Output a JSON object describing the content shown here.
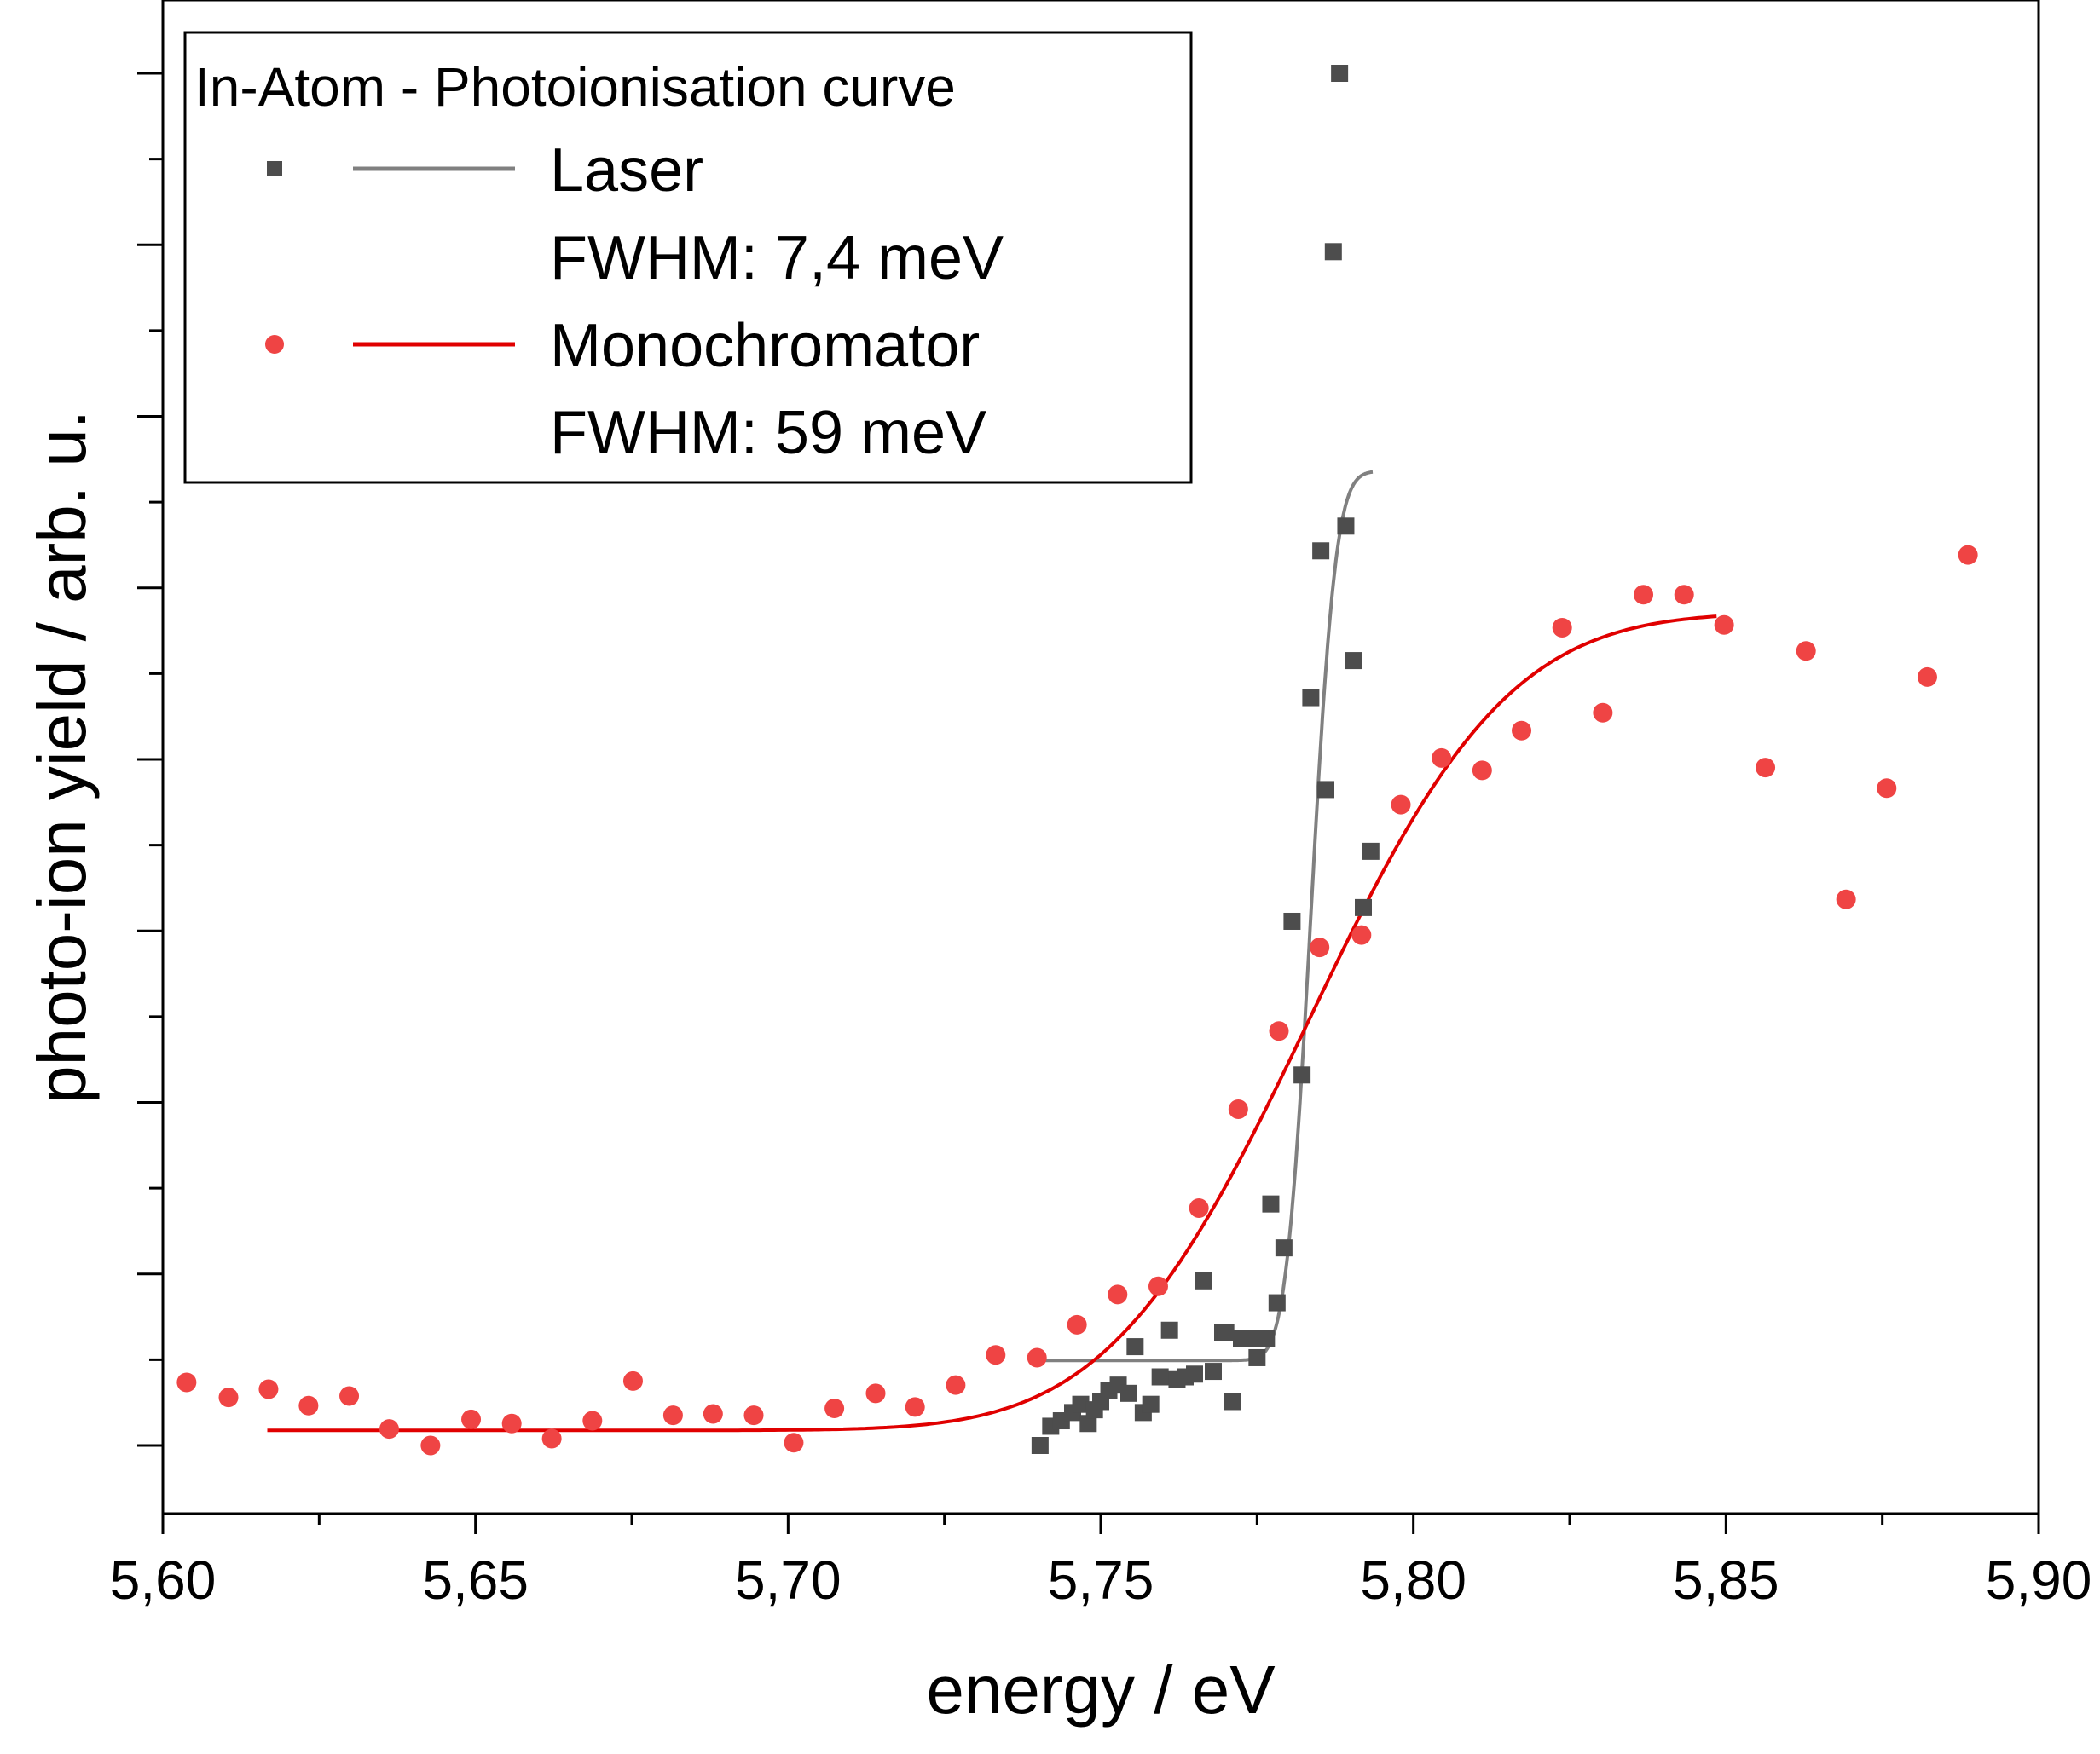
{
  "chart_data": {
    "type": "scatter",
    "title": "",
    "xlabel": "energy / eV",
    "ylabel": "photo-ion yield / arb. u.",
    "xlim": [
      5.6,
      5.9
    ],
    "ylim": [
      0,
      1
    ],
    "x_ticks": [
      5.6,
      5.65,
      5.7,
      5.75,
      5.8,
      5.85,
      5.9
    ],
    "x_tick_labels": [
      "5,60",
      "5,65",
      "5,70",
      "5,75",
      "5,80",
      "5,85",
      "5,90"
    ],
    "y_tick_labels_shown": false,
    "grid": false,
    "legend": {
      "placement": "top-left",
      "title": "In-Atom - Photoionisation curve",
      "entries": [
        {
          "series": "Laser",
          "label": "Laser",
          "sub": "FWHM: 7,4 meV"
        },
        {
          "series": "Monochromator",
          "label": "Monochromator",
          "sub": "FWHM: 59 meV"
        }
      ]
    },
    "series": [
      {
        "name": "Laser",
        "marker": "square",
        "color": "#4d4d4d",
        "fit_color": "#808080",
        "fit": {
          "model": "erf",
          "x_range": [
            5.74,
            5.7935
          ],
          "base": 0.062,
          "top": 0.71,
          "center": 5.7836,
          "fwhm": 0.0074
        },
        "points": [
          [
            5.7403,
            0.0
          ],
          [
            5.742,
            0.014
          ],
          [
            5.7437,
            0.018
          ],
          [
            5.7455,
            0.024
          ],
          [
            5.7468,
            0.03
          ],
          [
            5.748,
            0.016
          ],
          [
            5.749,
            0.026
          ],
          [
            5.75,
            0.032
          ],
          [
            5.7513,
            0.04
          ],
          [
            5.7528,
            0.044
          ],
          [
            5.7545,
            0.038
          ],
          [
            5.7555,
            0.072
          ],
          [
            5.7568,
            0.024
          ],
          [
            5.758,
            0.03
          ],
          [
            5.7595,
            0.05
          ],
          [
            5.761,
            0.084
          ],
          [
            5.7622,
            0.048
          ],
          [
            5.7635,
            0.05
          ],
          [
            5.765,
            0.052
          ],
          [
            5.7665,
            0.12
          ],
          [
            5.768,
            0.054
          ],
          [
            5.7695,
            0.082
          ],
          [
            5.77,
            0.082
          ],
          [
            5.771,
            0.032
          ],
          [
            5.7725,
            0.078
          ],
          [
            5.774,
            0.078
          ],
          [
            5.775,
            0.064
          ],
          [
            5.7765,
            0.078
          ],
          [
            5.7772,
            0.176
          ],
          [
            5.7782,
            0.104
          ],
          [
            5.7793,
            0.144
          ],
          [
            5.7806,
            0.382
          ],
          [
            5.7822,
            0.27
          ],
          [
            5.7836,
            0.545
          ],
          [
            5.7852,
            0.652
          ],
          [
            5.786,
            0.478
          ],
          [
            5.7872,
            0.87
          ],
          [
            5.7882,
            1.0
          ],
          [
            5.7892,
            0.67
          ],
          [
            5.7905,
            0.572
          ],
          [
            5.792,
            0.392
          ],
          [
            5.7932,
            0.433
          ]
        ]
      },
      {
        "name": "Monochromator",
        "marker": "circle",
        "color": "#ef4444",
        "fit_color": "#e00000",
        "fit": {
          "model": "erf",
          "x_range": [
            5.6167,
            5.8485
          ],
          "base": 0.011,
          "top": 0.607,
          "center": 5.7832,
          "fwhm": 0.059
        },
        "points": [
          [
            5.6038,
            0.046
          ],
          [
            5.6105,
            0.035
          ],
          [
            5.6169,
            0.041
          ],
          [
            5.6233,
            0.029
          ],
          [
            5.6298,
            0.036
          ],
          [
            5.6362,
            0.012
          ],
          [
            5.6428,
            0.0
          ],
          [
            5.6493,
            0.019
          ],
          [
            5.6558,
            0.016
          ],
          [
            5.6622,
            0.005
          ],
          [
            5.6687,
            0.018
          ],
          [
            5.6752,
            0.047
          ],
          [
            5.6816,
            0.022
          ],
          [
            5.688,
            0.023
          ],
          [
            5.6945,
            0.022
          ],
          [
            5.7009,
            0.002
          ],
          [
            5.7074,
            0.027
          ],
          [
            5.714,
            0.038
          ],
          [
            5.7203,
            0.028
          ],
          [
            5.7268,
            0.044
          ],
          [
            5.7332,
            0.066
          ],
          [
            5.7398,
            0.064
          ],
          [
            5.7462,
            0.088
          ],
          [
            5.7527,
            0.11
          ],
          [
            5.7592,
            0.116
          ],
          [
            5.7657,
            0.173
          ],
          [
            5.772,
            0.245
          ],
          [
            5.7785,
            0.302
          ],
          [
            5.785,
            0.363
          ],
          [
            5.7917,
            0.372
          ],
          [
            5.798,
            0.467
          ],
          [
            5.8045,
            0.501
          ],
          [
            5.811,
            0.492
          ],
          [
            5.8173,
            0.521
          ],
          [
            5.8238,
            0.596
          ],
          [
            5.8303,
            0.534
          ],
          [
            5.8368,
            0.62
          ],
          [
            5.8433,
            0.62
          ],
          [
            5.8497,
            0.598
          ],
          [
            5.8563,
            0.494
          ],
          [
            5.8628,
            0.579
          ],
          [
            5.8692,
            0.398
          ],
          [
            5.8757,
            0.479
          ],
          [
            5.8822,
            0.56
          ],
          [
            5.8887,
            0.649
          ]
        ]
      }
    ]
  }
}
